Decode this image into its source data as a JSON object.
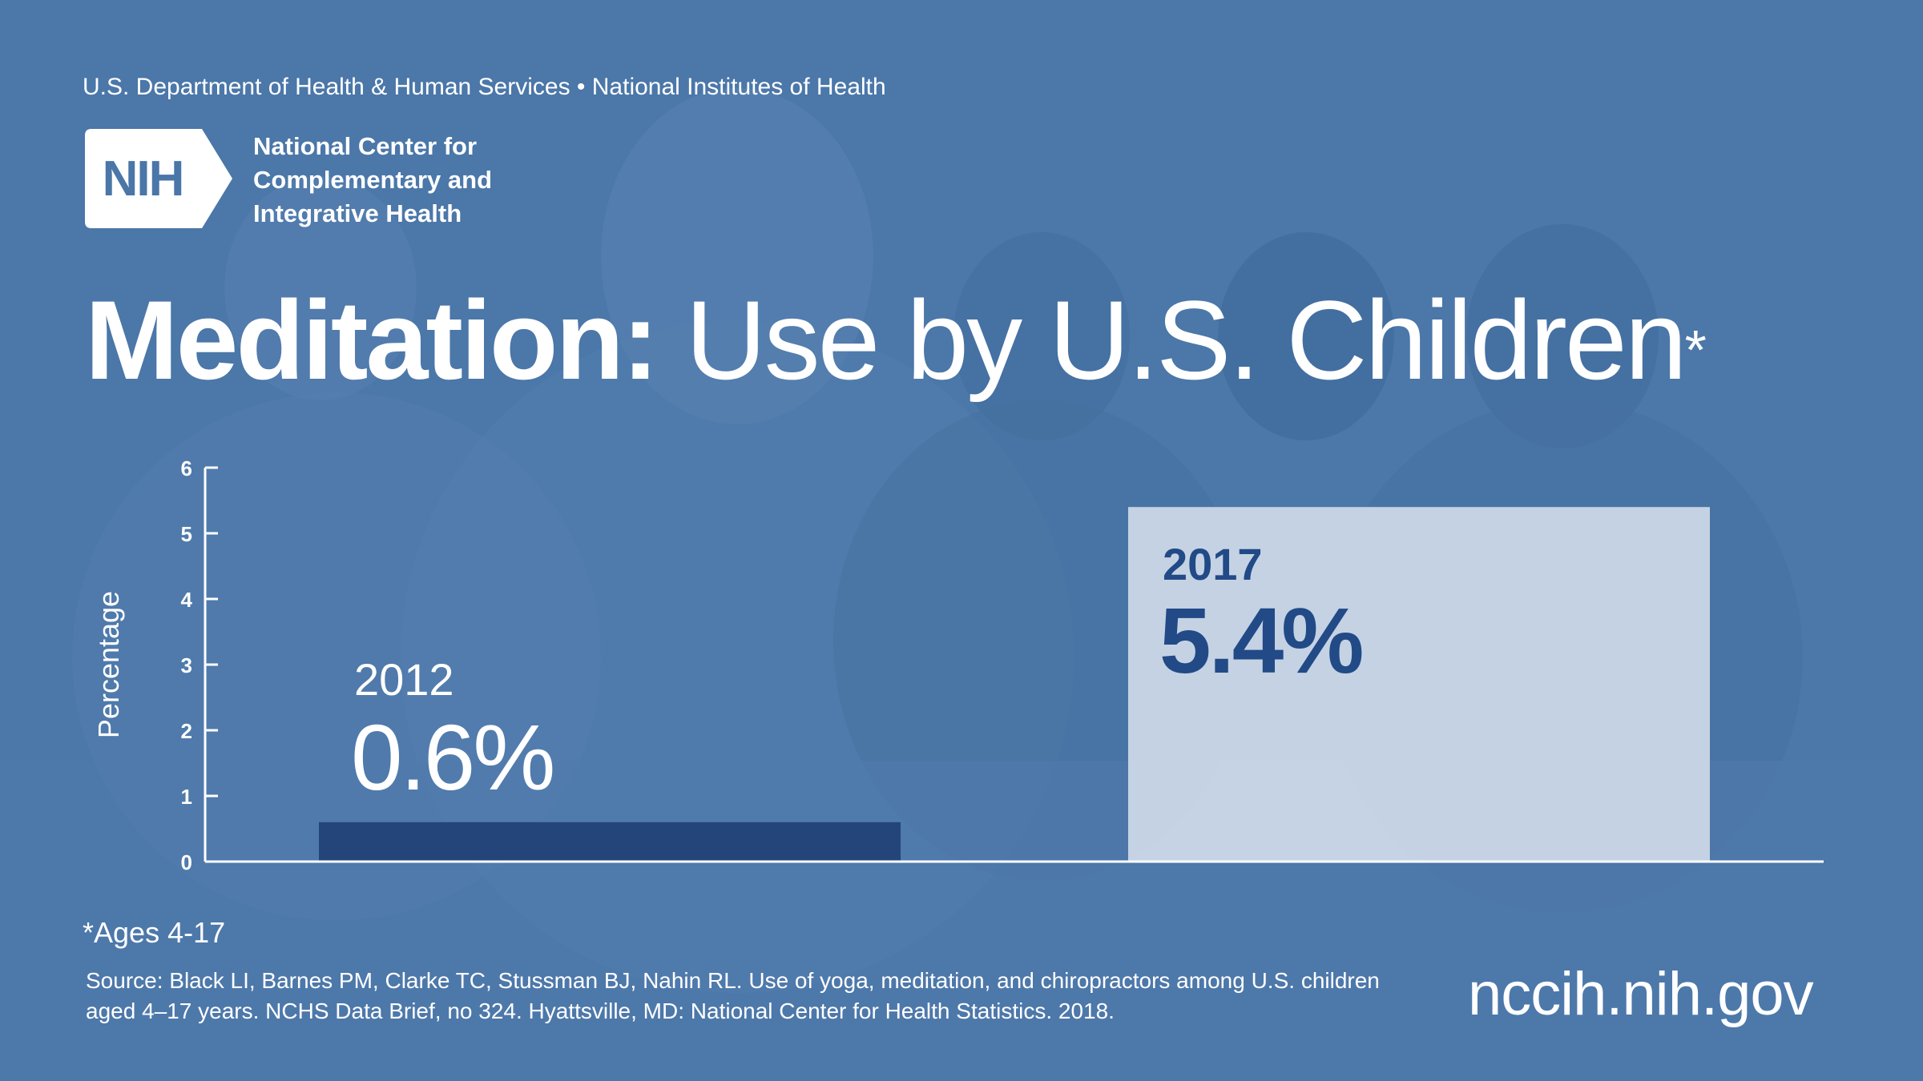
{
  "header": {
    "department_line": "U.S. Department of Health & Human Services • National Institutes of Health",
    "logo_mark": "NIH",
    "logo_lines": [
      "National Center for",
      "Complementary and",
      "Integrative Health"
    ]
  },
  "title": {
    "bold": "Meditation:",
    "rest": "Use by U.S. Children",
    "marker": "*"
  },
  "chart_data": {
    "type": "bar",
    "ylabel": "Percentage",
    "ylim": [
      0,
      6
    ],
    "yticks": [
      0,
      1,
      2,
      3,
      4,
      5,
      6
    ],
    "categories": [
      "2012",
      "2017"
    ],
    "values": [
      0.6,
      5.4
    ],
    "data_labels": [
      "0.6%",
      "5.4%"
    ],
    "bar_colors": [
      "#1e3d72",
      "#dfe6f0"
    ],
    "label_colors": [
      "#ffffff",
      "#214a86"
    ],
    "grid": false
  },
  "footnote": "*Ages 4-17",
  "source": "Source: Black LI, Barnes PM, Clarke TC, Stussman BJ, Nahin RL. Use of yoga, meditation, and chiropractors among U.S. children aged 4–17 years. NCHS Data Brief, no 324. Hyattsville, MD: National Center for Health Statistics. 2018.",
  "url": "nccih.nih.gov",
  "colors": {
    "background": "#4a76a8",
    "accent_dark": "#1e3d72",
    "bar_light": "#dfe6f0"
  }
}
